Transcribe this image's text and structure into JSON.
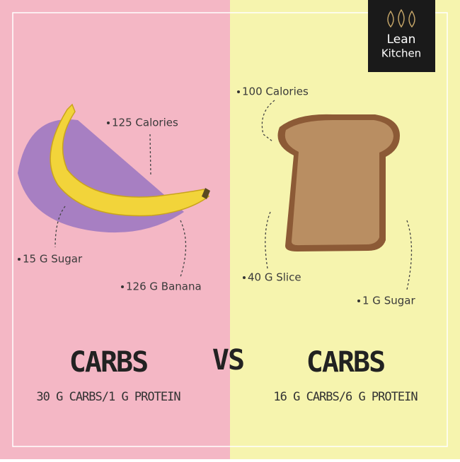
{
  "logo": {
    "line1": "Lean",
    "line2": "Kitchen"
  },
  "left": {
    "labels": [
      "125 Calories",
      "15 G Sugar",
      "126 G Banana"
    ],
    "heading": "CARBS",
    "subheading": "30 G CARBS/1 G PROTEIN"
  },
  "vs": "VS",
  "right": {
    "labels": [
      "100 Calories",
      "40 G Slice",
      "1 G Sugar"
    ],
    "heading": "CARBS",
    "subheading": "16 G CARBS/6 G PROTEIN"
  }
}
